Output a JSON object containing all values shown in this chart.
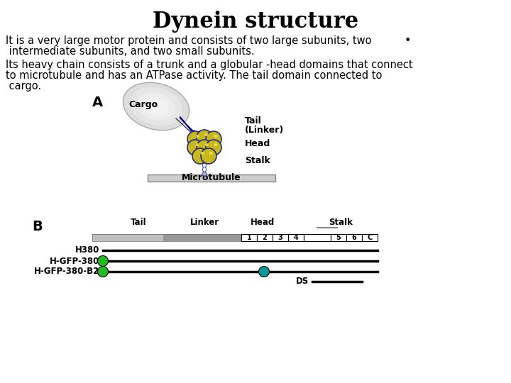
{
  "title": "Dynein structure",
  "title_fontsize": 22,
  "title_font": "serif",
  "bg_color": "#ffffff",
  "text1_line1": "It is a very large motor protein and consists of two large subunits, two",
  "text1_line2": " intermediate subunits, and two small subunits.",
  "bullet": "•",
  "text2_line1": "Its heavy chain consists of a trunk and a globular -head domains that connect",
  "text2_line2": "to microtubule and has an ATPase activity. The tail domain connected to",
  "text2_line3": " cargo.",
  "text_fontsize": 10.5,
  "label_A": "A",
  "label_B": "B",
  "green_color": "#22bb22",
  "teal_color": "#009999",
  "cargo_color1": "#f0f0f0",
  "cargo_color2": "#c0c0c0",
  "ball_fill": "#c8b820",
  "ball_edge": "#2a2a7a",
  "stalk_color": "#aaaacc",
  "mt_color": "#cccccc"
}
